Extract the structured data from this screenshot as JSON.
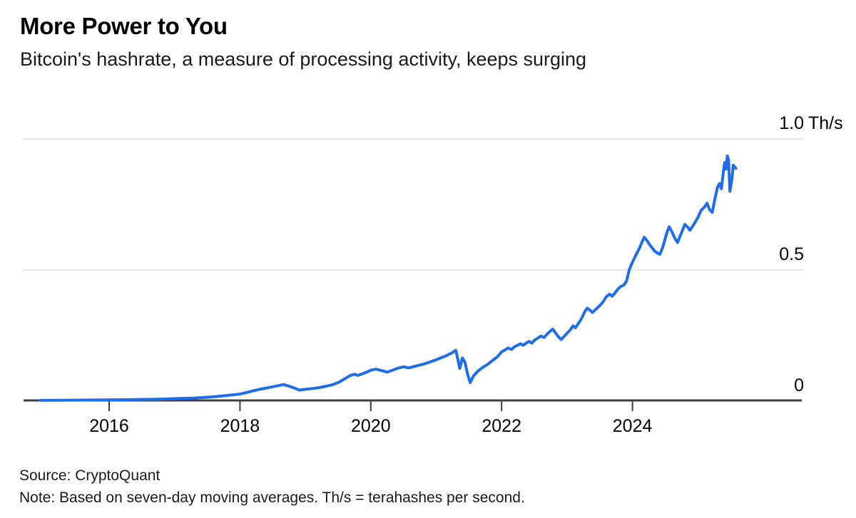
{
  "header": {
    "title": "More Power to You",
    "subtitle": "Bitcoin's hashrate, a measure of processing activity, keeps surging"
  },
  "footer": {
    "source": "Source: CryptoQuant",
    "note": "Note: Based on seven-day moving averages. Th/s = terahashes per second."
  },
  "colors": {
    "line": "#1f6de8",
    "axis": "#3f3f3f",
    "gridline": "#e7e7e7",
    "text": "#000000",
    "background": "#ffffff"
  },
  "chart_data": {
    "type": "line",
    "title": "More Power to You",
    "subtitle": "Bitcoin's hashrate, a measure of processing activity, keeps surging",
    "series_name": "Bitcoin hashrate (seven-day moving average)",
    "unit": "Th/s",
    "xlabel": "",
    "ylabel": "Th/s",
    "ylim": [
      0,
      1.05
    ],
    "x_range_years": [
      2014.95,
      2025.58
    ],
    "grid": true,
    "legend": "none",
    "y_ticks": [
      {
        "value": 1.0,
        "label": "1.0",
        "suffix": "Th/s"
      },
      {
        "value": 0.5,
        "label": "0.5",
        "suffix": ""
      },
      {
        "value": 0.0,
        "label": "0",
        "suffix": ""
      }
    ],
    "x_ticks": [
      {
        "value": 2016,
        "label": "2016"
      },
      {
        "value": 2018,
        "label": "2018"
      },
      {
        "value": 2020,
        "label": "2020"
      },
      {
        "value": 2022,
        "label": "2022"
      },
      {
        "value": 2024,
        "label": "2024"
      }
    ],
    "points": [
      [
        2014.95,
        0.003
      ],
      [
        2015.3,
        0.0035
      ],
      [
        2015.6,
        0.004
      ],
      [
        2015.9,
        0.0045
      ],
      [
        2016.2,
        0.0055
      ],
      [
        2016.5,
        0.0065
      ],
      [
        2016.8,
        0.008
      ],
      [
        2017.05,
        0.01
      ],
      [
        2017.3,
        0.012
      ],
      [
        2017.5,
        0.015
      ],
      [
        2017.7,
        0.019
      ],
      [
        2017.85,
        0.023
      ],
      [
        2018.0,
        0.027
      ],
      [
        2018.1,
        0.033
      ],
      [
        2018.2,
        0.039
      ],
      [
        2018.3,
        0.045
      ],
      [
        2018.4,
        0.05
      ],
      [
        2018.5,
        0.055
      ],
      [
        2018.6,
        0.06
      ],
      [
        2018.67,
        0.063
      ],
      [
        2018.74,
        0.058
      ],
      [
        2018.82,
        0.051
      ],
      [
        2018.91,
        0.042
      ],
      [
        2019.0,
        0.045
      ],
      [
        2019.1,
        0.048
      ],
      [
        2019.2,
        0.051
      ],
      [
        2019.3,
        0.056
      ],
      [
        2019.42,
        0.063
      ],
      [
        2019.52,
        0.073
      ],
      [
        2019.6,
        0.085
      ],
      [
        2019.68,
        0.097
      ],
      [
        2019.75,
        0.103
      ],
      [
        2019.8,
        0.098
      ],
      [
        2019.87,
        0.104
      ],
      [
        2019.93,
        0.11
      ],
      [
        2020.0,
        0.118
      ],
      [
        2020.08,
        0.122
      ],
      [
        2020.16,
        0.117
      ],
      [
        2020.25,
        0.111
      ],
      [
        2020.33,
        0.118
      ],
      [
        2020.42,
        0.126
      ],
      [
        2020.5,
        0.131
      ],
      [
        2020.58,
        0.127
      ],
      [
        2020.66,
        0.132
      ],
      [
        2020.74,
        0.137
      ],
      [
        2020.82,
        0.142
      ],
      [
        2020.9,
        0.149
      ],
      [
        2021.0,
        0.158
      ],
      [
        2021.08,
        0.166
      ],
      [
        2021.16,
        0.174
      ],
      [
        2021.24,
        0.184
      ],
      [
        2021.3,
        0.194
      ],
      [
        2021.33,
        0.16
      ],
      [
        2021.36,
        0.125
      ],
      [
        2021.4,
        0.165
      ],
      [
        2021.44,
        0.148
      ],
      [
        2021.48,
        0.103
      ],
      [
        2021.52,
        0.071
      ],
      [
        2021.57,
        0.096
      ],
      [
        2021.63,
        0.113
      ],
      [
        2021.7,
        0.127
      ],
      [
        2021.78,
        0.139
      ],
      [
        2021.86,
        0.155
      ],
      [
        2021.94,
        0.17
      ],
      [
        2022.0,
        0.188
      ],
      [
        2022.05,
        0.195
      ],
      [
        2022.1,
        0.203
      ],
      [
        2022.15,
        0.197
      ],
      [
        2022.2,
        0.208
      ],
      [
        2022.25,
        0.214
      ],
      [
        2022.29,
        0.219
      ],
      [
        2022.33,
        0.213
      ],
      [
        2022.38,
        0.222
      ],
      [
        2022.42,
        0.228
      ],
      [
        2022.46,
        0.221
      ],
      [
        2022.5,
        0.232
      ],
      [
        2022.55,
        0.24
      ],
      [
        2022.6,
        0.248
      ],
      [
        2022.65,
        0.243
      ],
      [
        2022.7,
        0.257
      ],
      [
        2022.74,
        0.266
      ],
      [
        2022.78,
        0.275
      ],
      [
        2022.82,
        0.262
      ],
      [
        2022.86,
        0.248
      ],
      [
        2022.91,
        0.235
      ],
      [
        2022.96,
        0.248
      ],
      [
        2023.0,
        0.259
      ],
      [
        2023.05,
        0.272
      ],
      [
        2023.09,
        0.287
      ],
      [
        2023.13,
        0.28
      ],
      [
        2023.17,
        0.295
      ],
      [
        2023.21,
        0.31
      ],
      [
        2023.25,
        0.33
      ],
      [
        2023.28,
        0.345
      ],
      [
        2023.31,
        0.355
      ],
      [
        2023.35,
        0.347
      ],
      [
        2023.39,
        0.338
      ],
      [
        2023.43,
        0.348
      ],
      [
        2023.47,
        0.357
      ],
      [
        2023.51,
        0.367
      ],
      [
        2023.55,
        0.378
      ],
      [
        2023.6,
        0.398
      ],
      [
        2023.65,
        0.408
      ],
      [
        2023.69,
        0.4
      ],
      [
        2023.74,
        0.415
      ],
      [
        2023.78,
        0.428
      ],
      [
        2023.82,
        0.437
      ],
      [
        2023.87,
        0.443
      ],
      [
        2023.91,
        0.458
      ],
      [
        2023.95,
        0.5
      ],
      [
        2024.0,
        0.53
      ],
      [
        2024.05,
        0.556
      ],
      [
        2024.1,
        0.58
      ],
      [
        2024.14,
        0.603
      ],
      [
        2024.18,
        0.625
      ],
      [
        2024.22,
        0.613
      ],
      [
        2024.26,
        0.598
      ],
      [
        2024.3,
        0.585
      ],
      [
        2024.34,
        0.572
      ],
      [
        2024.38,
        0.565
      ],
      [
        2024.42,
        0.56
      ],
      [
        2024.46,
        0.585
      ],
      [
        2024.5,
        0.62
      ],
      [
        2024.53,
        0.645
      ],
      [
        2024.56,
        0.665
      ],
      [
        2024.6,
        0.648
      ],
      [
        2024.64,
        0.625
      ],
      [
        2024.69,
        0.605
      ],
      [
        2024.73,
        0.63
      ],
      [
        2024.77,
        0.655
      ],
      [
        2024.8,
        0.674
      ],
      [
        2024.84,
        0.665
      ],
      [
        2024.88,
        0.652
      ],
      [
        2024.92,
        0.667
      ],
      [
        2024.96,
        0.683
      ],
      [
        2025.0,
        0.7
      ],
      [
        2025.05,
        0.728
      ],
      [
        2025.1,
        0.74
      ],
      [
        2025.14,
        0.755
      ],
      [
        2025.18,
        0.73
      ],
      [
        2025.22,
        0.72
      ],
      [
        2025.26,
        0.77
      ],
      [
        2025.3,
        0.815
      ],
      [
        2025.33,
        0.83
      ],
      [
        2025.36,
        0.81
      ],
      [
        2025.39,
        0.875
      ],
      [
        2025.41,
        0.91
      ],
      [
        2025.43,
        0.885
      ],
      [
        2025.45,
        0.935
      ],
      [
        2025.47,
        0.92
      ],
      [
        2025.49,
        0.8
      ],
      [
        2025.52,
        0.845
      ],
      [
        2025.54,
        0.9
      ],
      [
        2025.58,
        0.888
      ]
    ]
  }
}
